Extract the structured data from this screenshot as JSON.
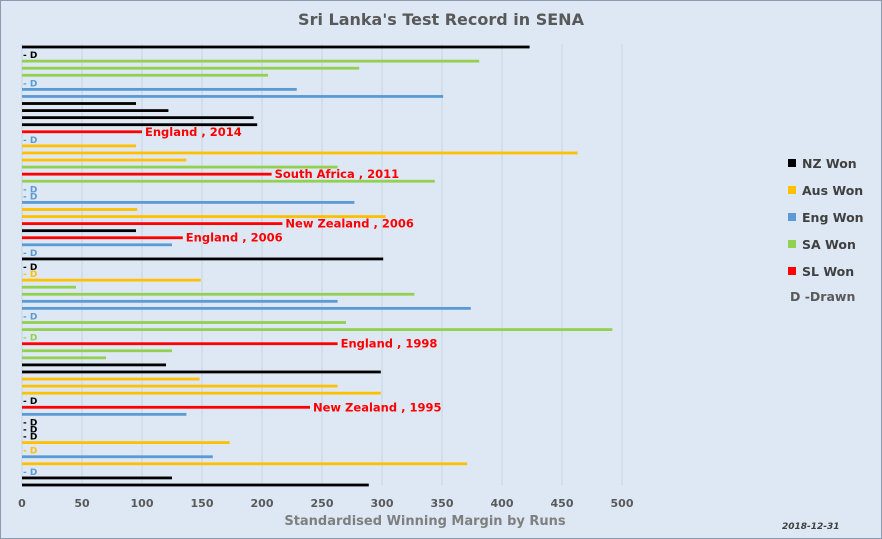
{
  "chart_data": {
    "type": "bar",
    "orientation": "horizontal",
    "title": "Sri Lanka's Test Record in SENA",
    "xlabel": "Standardised Winning Margin by Runs",
    "xlim": [
      0,
      500
    ],
    "xticks": [
      0,
      50,
      100,
      150,
      200,
      250,
      300,
      350,
      400,
      450,
      500
    ],
    "grid": true,
    "legend_position": "right",
    "date_stamp": "2018-12-31",
    "drawn_label": "D -Drawn",
    "series": [
      {
        "key": "NZ",
        "name": "NZ Won",
        "color": "#000000"
      },
      {
        "key": "AUS",
        "name": "Aus Won",
        "color": "#ffc000"
      },
      {
        "key": "ENG",
        "name": "Eng Won",
        "color": "#5b9bd5"
      },
      {
        "key": "SA",
        "name": "SA Won",
        "color": "#92d050"
      },
      {
        "key": "SL",
        "name": "SL Won",
        "color": "#ff0000"
      }
    ],
    "matches": [
      {
        "series": "NZ",
        "value": 423
      },
      {
        "series": "NZ",
        "value": 0,
        "label": "- D"
      },
      {
        "series": "SA",
        "value": 381
      },
      {
        "series": "SA",
        "value": 281
      },
      {
        "series": "SA",
        "value": 205
      },
      {
        "series": "ENG",
        "value": 0,
        "label": "- D"
      },
      {
        "series": "ENG",
        "value": 229
      },
      {
        "series": "ENG",
        "value": 351
      },
      {
        "series": "NZ",
        "value": 95
      },
      {
        "series": "NZ",
        "value": 122
      },
      {
        "series": "NZ",
        "value": 193
      },
      {
        "series": "NZ",
        "value": 196
      },
      {
        "series": "SL",
        "value": 100,
        "label": "England , 2014"
      },
      {
        "series": "ENG",
        "value": 0,
        "label": "- D"
      },
      {
        "series": "AUS",
        "value": 95
      },
      {
        "series": "AUS",
        "value": 463
      },
      {
        "series": "AUS",
        "value": 137
      },
      {
        "series": "SA",
        "value": 263
      },
      {
        "series": "SL",
        "value": 208,
        "label": "South Africa , 2011"
      },
      {
        "series": "SA",
        "value": 344
      },
      {
        "series": "ENG",
        "value": 0,
        "label": "- D"
      },
      {
        "series": "ENG",
        "value": 0,
        "label": "- D"
      },
      {
        "series": "ENG",
        "value": 277
      },
      {
        "series": "AUS",
        "value": 96
      },
      {
        "series": "AUS",
        "value": 303
      },
      {
        "series": "SL",
        "value": 217,
        "label": "New Zealand , 2006"
      },
      {
        "series": "NZ",
        "value": 95
      },
      {
        "series": "SL",
        "value": 134,
        "label": "England , 2006"
      },
      {
        "series": "ENG",
        "value": 125
      },
      {
        "series": "ENG",
        "value": 0,
        "label": "- D"
      },
      {
        "series": "NZ",
        "value": 301
      },
      {
        "series": "NZ",
        "value": 0,
        "label": "- D"
      },
      {
        "series": "AUS",
        "value": 0,
        "label": "- D"
      },
      {
        "series": "AUS",
        "value": 149
      },
      {
        "series": "SA",
        "value": 45
      },
      {
        "series": "SA",
        "value": 327
      },
      {
        "series": "ENG",
        "value": 263
      },
      {
        "series": "ENG",
        "value": 374
      },
      {
        "series": "ENG",
        "value": 0,
        "label": "- D"
      },
      {
        "series": "SA",
        "value": 270
      },
      {
        "series": "SA",
        "value": 492
      },
      {
        "series": "SA",
        "value": 0,
        "label": "- D"
      },
      {
        "series": "SL",
        "value": 263,
        "label": "England , 1998"
      },
      {
        "series": "SA",
        "value": 125
      },
      {
        "series": "SA",
        "value": 70
      },
      {
        "series": "NZ",
        "value": 120
      },
      {
        "series": "NZ",
        "value": 299
      },
      {
        "series": "AUS",
        "value": 148
      },
      {
        "series": "AUS",
        "value": 263
      },
      {
        "series": "AUS",
        "value": 299
      },
      {
        "series": "NZ",
        "value": 0,
        "label": "- D"
      },
      {
        "series": "SL",
        "value": 240,
        "label": "New Zealand , 1995"
      },
      {
        "series": "ENG",
        "value": 137
      },
      {
        "series": "NZ",
        "value": 0,
        "label": "- D"
      },
      {
        "series": "NZ",
        "value": 0,
        "label": "- D"
      },
      {
        "series": "NZ",
        "value": 0,
        "label": "- D"
      },
      {
        "series": "AUS",
        "value": 173
      },
      {
        "series": "AUS",
        "value": 0,
        "label": "- D"
      },
      {
        "series": "ENG",
        "value": 159
      },
      {
        "series": "AUS",
        "value": 371
      },
      {
        "series": "ENG",
        "value": 0,
        "label": "- D"
      },
      {
        "series": "NZ",
        "value": 125
      },
      {
        "series": "NZ",
        "value": 289
      }
    ]
  }
}
